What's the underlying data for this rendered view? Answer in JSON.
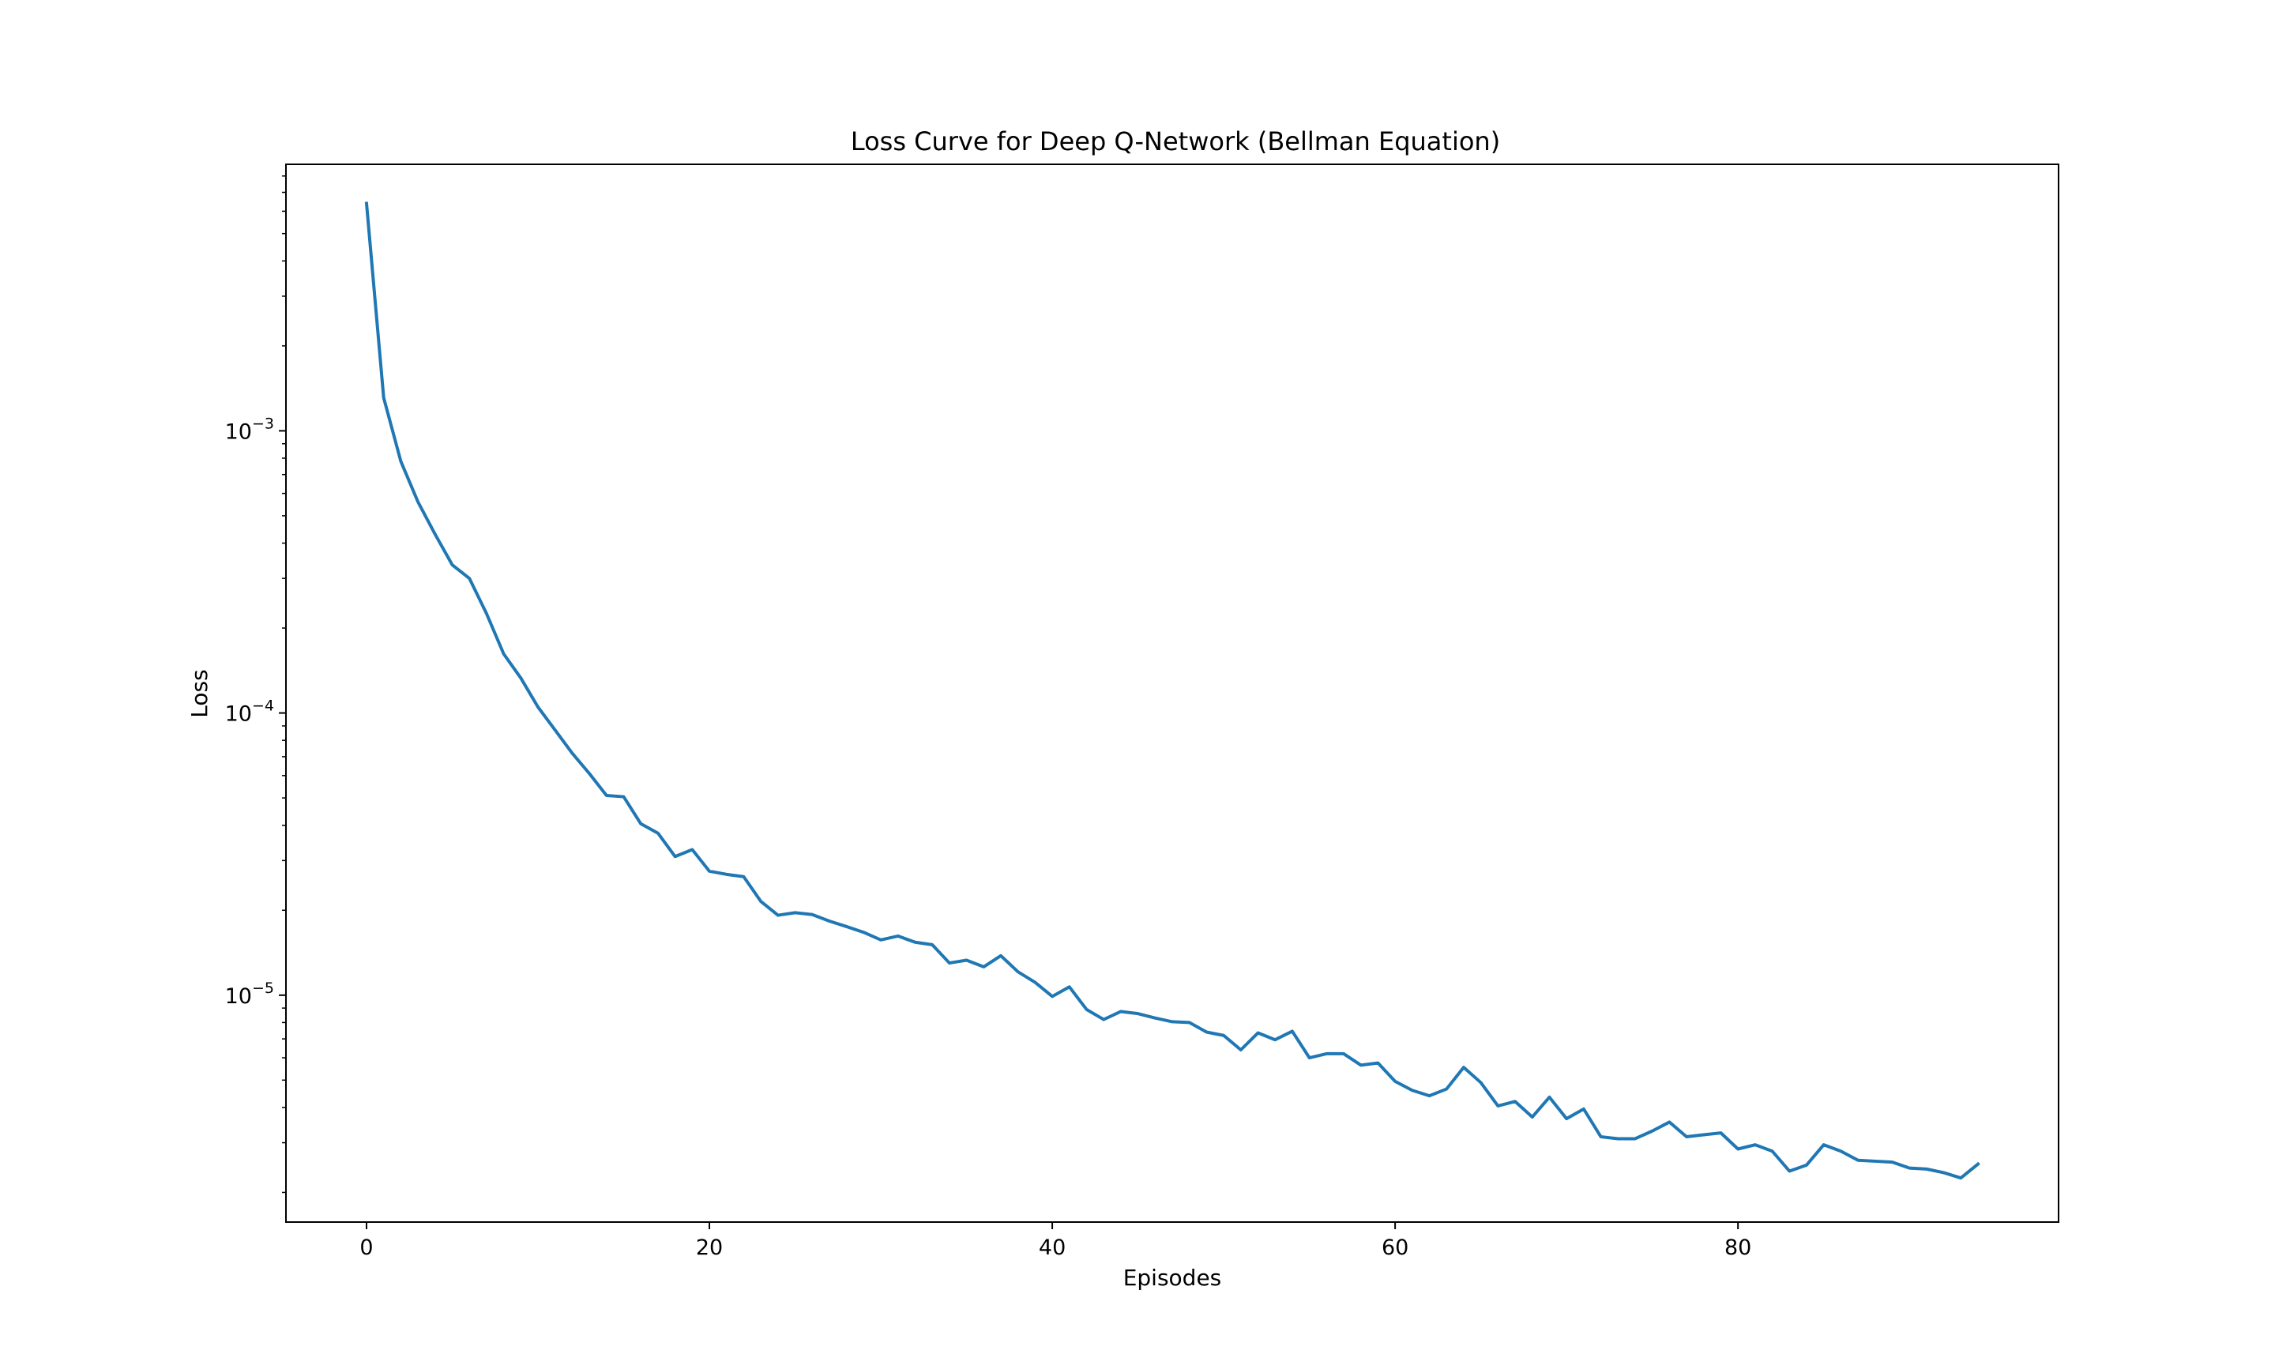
{
  "chart_data": {
    "type": "line",
    "title": "Loss Curve for Deep Q-Network (Bellman Equation)",
    "xlabel": "Episodes",
    "ylabel": "Loss",
    "xlim": [
      -4.7,
      98.7
    ],
    "ylim": [
      1.57e-06,
      0.0088
    ],
    "yscale": "log",
    "grid": false,
    "legend": "none",
    "line_color": "#1f77b4",
    "x_ticks": [
      {
        "value": 0,
        "label": "0"
      },
      {
        "value": 20,
        "label": "20"
      },
      {
        "value": 40,
        "label": "40"
      },
      {
        "value": 60,
        "label": "60"
      },
      {
        "value": 80,
        "label": "80"
      }
    ],
    "y_ticks": [
      {
        "value": 0.001,
        "base": "10",
        "exp": "−3"
      },
      {
        "value": 0.0001,
        "base": "10",
        "exp": "−4"
      },
      {
        "value": 1e-05,
        "base": "10",
        "exp": "−5"
      }
    ],
    "series": [
      {
        "x": [
          0,
          1,
          2,
          3,
          4,
          5,
          6,
          7,
          8,
          9,
          10,
          11,
          12,
          13,
          14,
          15,
          16,
          17,
          18,
          19,
          20,
          21,
          22,
          23,
          24,
          25,
          26,
          27,
          28,
          29,
          30,
          31,
          32,
          33,
          34,
          35,
          36,
          37,
          38,
          39,
          40,
          41,
          42,
          43,
          44,
          45,
          46,
          47,
          48,
          49,
          50,
          51,
          52,
          53,
          54,
          55,
          56,
          57,
          58,
          59,
          60,
          61,
          62,
          63,
          64,
          65,
          66,
          67,
          68,
          69,
          70,
          71,
          72,
          73,
          74,
          75,
          76,
          77,
          78,
          79,
          80,
          81,
          82,
          83,
          84,
          85,
          86,
          87,
          88,
          89,
          90,
          91,
          92,
          93,
          94
        ],
        "values": [
          0.0064,
          0.00131,
          0.00078,
          0.00056,
          0.00043,
          0.000335,
          0.0003,
          0.000225,
          0.000162,
          0.000133,
          0.000105,
          8.7e-05,
          7.2e-05,
          6.1e-05,
          5.1e-05,
          5.05e-05,
          4.05e-05,
          3.75e-05,
          3.1e-05,
          3.28e-05,
          2.75e-05,
          2.68e-05,
          2.63e-05,
          2.15e-05,
          1.92e-05,
          1.96e-05,
          1.93e-05,
          1.83e-05,
          1.75e-05,
          1.67e-05,
          1.57e-05,
          1.62e-05,
          1.54e-05,
          1.51e-05,
          1.3e-05,
          1.33e-05,
          1.26e-05,
          1.38e-05,
          1.21e-05,
          1.11e-05,
          9.9e-06,
          1.07e-05,
          8.9e-06,
          8.2e-06,
          8.75e-06,
          8.6e-06,
          8.3e-06,
          8.05e-06,
          8e-06,
          7.4e-06,
          7.2e-06,
          6.4e-06,
          7.35e-06,
          6.95e-06,
          7.45e-06,
          6e-06,
          6.2e-06,
          6.2e-06,
          5.65e-06,
          5.75e-06,
          4.95e-06,
          4.6e-06,
          4.4e-06,
          4.65e-06,
          5.55e-06,
          4.9e-06,
          4.05e-06,
          4.2e-06,
          3.7e-06,
          4.35e-06,
          3.65e-06,
          3.95e-06,
          3.15e-06,
          3.1e-06,
          3.1e-06,
          3.3e-06,
          3.55e-06,
          3.15e-06,
          3.2e-06,
          3.25e-06,
          2.85e-06,
          2.95e-06,
          2.8e-06,
          2.38e-06,
          2.5e-06,
          2.95e-06,
          2.8e-06,
          2.6e-06,
          2.58e-06,
          2.56e-06,
          2.44e-06,
          2.42e-06,
          2.35e-06,
          2.25e-06,
          2.52e-06
        ]
      }
    ]
  }
}
